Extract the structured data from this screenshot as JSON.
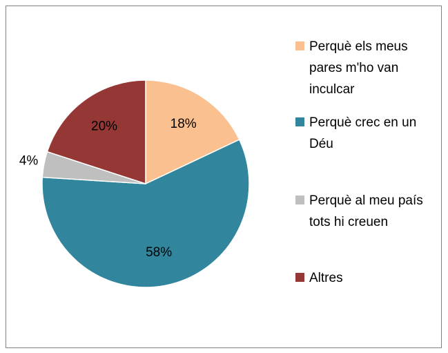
{
  "chart_data": {
    "type": "pie",
    "categories": [
      "Perquè els meus pares m'ho van inculcar",
      "Perquè crec en un Déu",
      "Perquè al meu país tots hi creuen",
      "Altres"
    ],
    "values": [
      18,
      58,
      4,
      20
    ],
    "value_labels": [
      "18%",
      "58%",
      "4%",
      "20%"
    ],
    "colors": [
      "#fac090",
      "#31859c",
      "#bfbfbf",
      "#953735"
    ],
    "legend": "right"
  }
}
